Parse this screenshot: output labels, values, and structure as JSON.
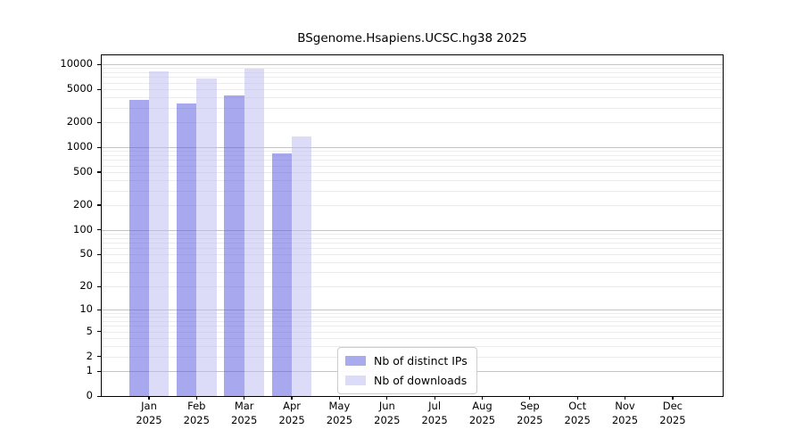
{
  "figure": {
    "background": "#ffffff"
  },
  "chart_data": {
    "type": "bar",
    "title": "BSgenome.Hsapiens.UCSC.hg38 2025",
    "categories": [
      "Jan 2025",
      "Feb 2025",
      "Mar 2025",
      "Apr 2025",
      "May 2025",
      "Jun 2025",
      "Jul 2025",
      "Aug 2025",
      "Sep 2025",
      "Oct 2025",
      "Nov 2025",
      "Dec 2025"
    ],
    "months": [
      "Jan",
      "Feb",
      "Mar",
      "Apr",
      "May",
      "Jun",
      "Jul",
      "Aug",
      "Sep",
      "Oct",
      "Nov",
      "Dec"
    ],
    "year": "2025",
    "series": [
      {
        "name": "Nb of distinct IPs",
        "legend_color": "#aaaaee",
        "fill": "rgba(81,81,221,0.5)",
        "values": [
          3700,
          3350,
          4200,
          840,
          null,
          null,
          null,
          null,
          null,
          null,
          null,
          null
        ]
      },
      {
        "name": "Nb of downloads",
        "legend_color": "#dcdcf8",
        "fill": "rgba(185,185,241,0.5)",
        "values": [
          8200,
          6700,
          8800,
          1350,
          null,
          null,
          null,
          null,
          null,
          null,
          null,
          null
        ]
      }
    ],
    "yscale": "log1p",
    "ylim": [
      0,
      12800
    ],
    "yticks": [
      0,
      1,
      2,
      5,
      10,
      20,
      50,
      100,
      200,
      500,
      1000,
      2000,
      5000,
      10000
    ],
    "grid": true,
    "grid_major_ticks": [
      1,
      10,
      100,
      1000,
      10000
    ],
    "legend_position": "lower-center"
  },
  "style": {
    "axis_color": "#000000",
    "grid_major_color": "#c4c4c4",
    "grid_minor_color": "#ececec",
    "legend_border_color": "#cccccc"
  }
}
